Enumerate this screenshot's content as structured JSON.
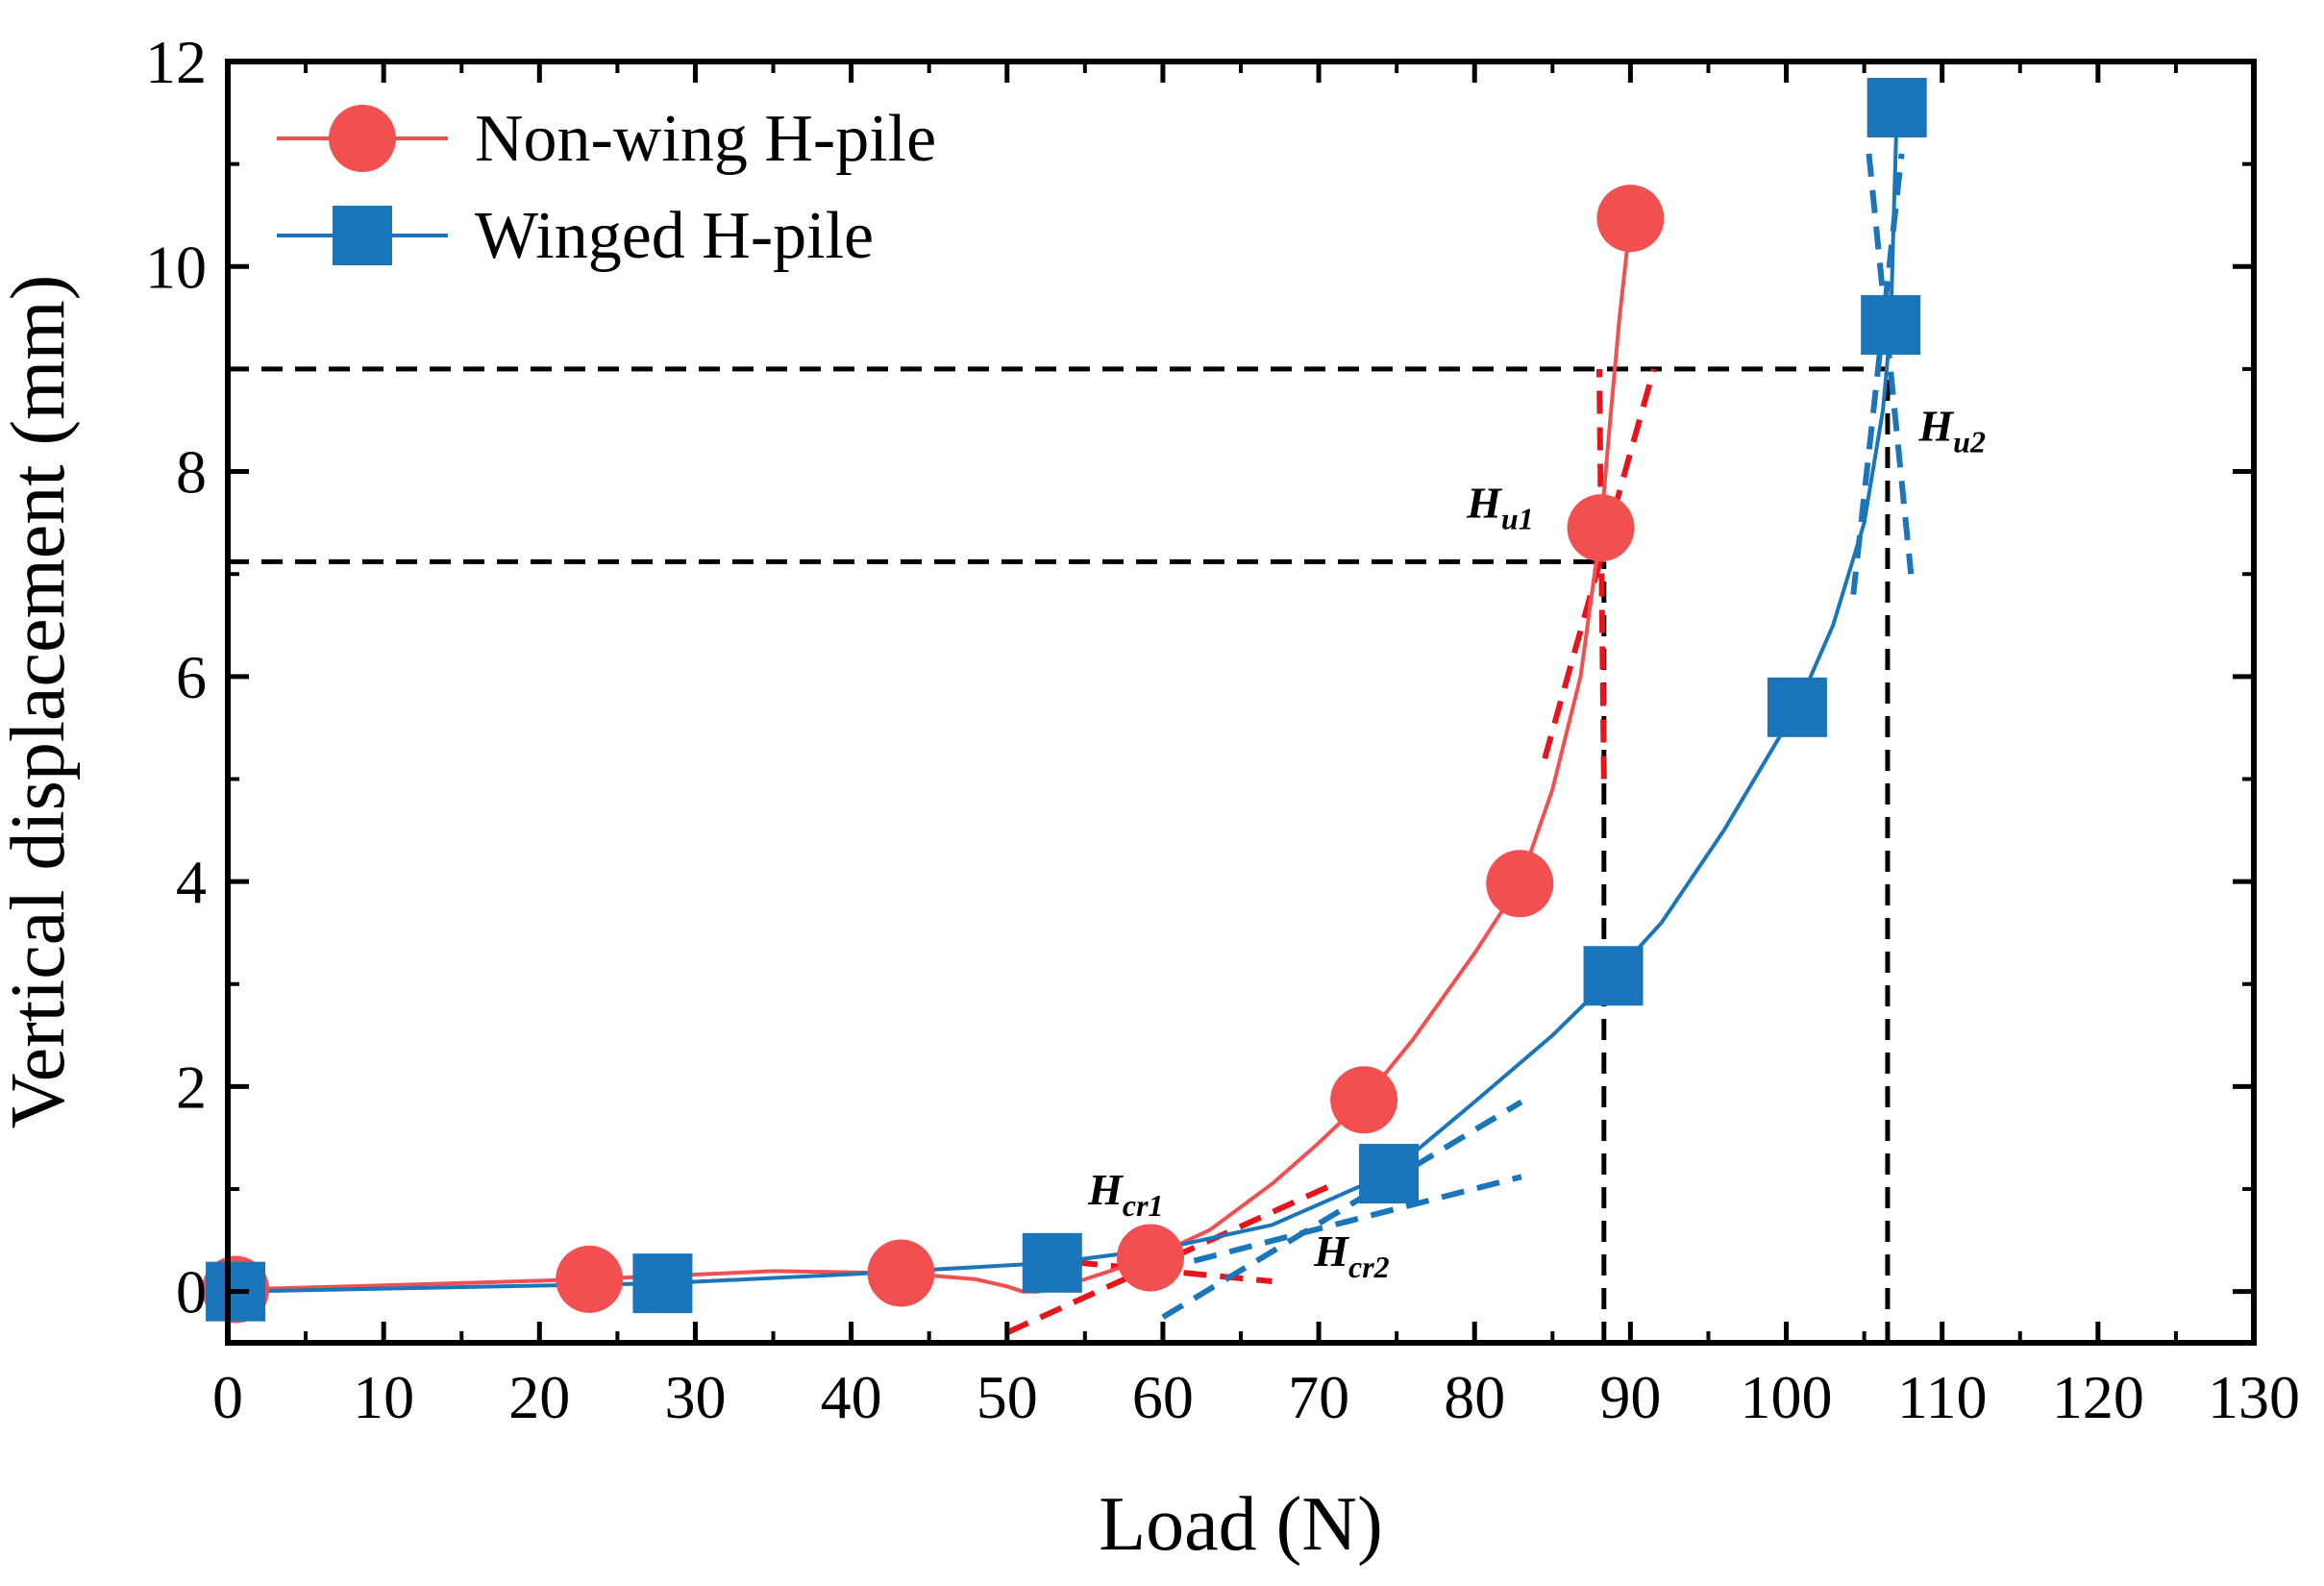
{
  "chart_data": {
    "type": "line",
    "title": "",
    "xlabel": "Load (N)",
    "ylabel": "Vertical displacement (mm)",
    "xlim": [
      0,
      130
    ],
    "ylim": [
      -0.5,
      12
    ],
    "xticks": [
      0,
      10,
      20,
      30,
      40,
      50,
      60,
      70,
      80,
      90,
      100,
      110,
      120,
      130
    ],
    "yticks": [
      0,
      2,
      4,
      6,
      8,
      10,
      12
    ],
    "legend_position": "top-left",
    "series": [
      {
        "name": "Non-wing H-pile",
        "color": "#f25050",
        "marker": "circle",
        "marker_points": [
          [
            0.5,
            0.02
          ],
          [
            23.2,
            0.12
          ],
          [
            43.2,
            0.18
          ],
          [
            59.2,
            0.33
          ],
          [
            72.9,
            1.87
          ],
          [
            82.9,
            3.98
          ],
          [
            88.1,
            7.45
          ],
          [
            90.0,
            10.47
          ]
        ],
        "line_points": [
          [
            0.5,
            0.02
          ],
          [
            10,
            0.06
          ],
          [
            23.2,
            0.12
          ],
          [
            35,
            0.2
          ],
          [
            43.2,
            0.18
          ],
          [
            48,
            0.12
          ],
          [
            50,
            0.05
          ],
          [
            51,
            0.0
          ],
          [
            52,
            0.0
          ],
          [
            55,
            0.12
          ],
          [
            59.2,
            0.33
          ],
          [
            63,
            0.6
          ],
          [
            67,
            1.05
          ],
          [
            70,
            1.45
          ],
          [
            72.9,
            1.87
          ],
          [
            76,
            2.45
          ],
          [
            80,
            3.3
          ],
          [
            82.9,
            3.98
          ],
          [
            85,
            4.9
          ],
          [
            86.8,
            6.0
          ],
          [
            88.1,
            7.45
          ],
          [
            88.7,
            8.5
          ],
          [
            89.3,
            9.5
          ],
          [
            90.0,
            10.47
          ]
        ]
      },
      {
        "name": "Winged H-pile",
        "color": "#1b75bb",
        "marker": "square",
        "marker_points": [
          [
            0.5,
            0.0
          ],
          [
            27.9,
            0.08
          ],
          [
            52.9,
            0.28
          ],
          [
            74.5,
            1.15
          ],
          [
            88.9,
            3.08
          ],
          [
            100.7,
            5.7
          ],
          [
            106.7,
            9.43
          ],
          [
            107.1,
            11.55
          ]
        ],
        "line_points": [
          [
            0.5,
            0.0
          ],
          [
            14,
            0.04
          ],
          [
            27.9,
            0.08
          ],
          [
            40,
            0.17
          ],
          [
            52.9,
            0.28
          ],
          [
            60,
            0.42
          ],
          [
            67,
            0.65
          ],
          [
            74.5,
            1.15
          ],
          [
            80,
            1.85
          ],
          [
            85,
            2.5
          ],
          [
            88.9,
            3.08
          ],
          [
            92,
            3.6
          ],
          [
            96,
            4.5
          ],
          [
            100.7,
            5.7
          ],
          [
            103,
            6.5
          ],
          [
            105,
            7.5
          ],
          [
            106.2,
            8.6
          ],
          [
            106.7,
            9.43
          ],
          [
            106.9,
            10.5
          ],
          [
            107.1,
            11.55
          ]
        ]
      }
    ],
    "reference_lines": [
      {
        "type": "h",
        "y": 7.12,
        "x_range": [
          0,
          88.3
        ]
      },
      {
        "type": "v",
        "x": 88.3,
        "y_range": [
          -0.5,
          7.12
        ]
      },
      {
        "type": "h",
        "y": 9.0,
        "x_range": [
          0,
          106.5
        ]
      },
      {
        "type": "v",
        "x": 106.5,
        "y_range": [
          -0.5,
          9.0
        ]
      }
    ],
    "tangent_lines": [
      {
        "series": "Non-wing H-pile",
        "from": [
          50,
          -0.4
        ],
        "to": [
          71,
          1.05
        ]
      },
      {
        "series": "Non-wing H-pile",
        "from": [
          52,
          0.32
        ],
        "to": [
          67,
          0.1
        ]
      },
      {
        "series": "Non-wing H-pile",
        "from": [
          84.5,
          5.2
        ],
        "to": [
          91.5,
          9.0
        ]
      },
      {
        "series": "Non-wing H-pile",
        "from": [
          88.3,
          5.0
        ],
        "to": [
          88.0,
          9.0
        ]
      },
      {
        "series": "Winged H-pile",
        "from": [
          60,
          -0.25
        ],
        "to": [
          83,
          1.85
        ]
      },
      {
        "series": "Winged H-pile",
        "from": [
          62,
          0.3
        ],
        "to": [
          83,
          1.12
        ]
      },
      {
        "series": "Winged H-pile",
        "from": [
          104.3,
          6.8
        ],
        "to": [
          107.4,
          11.1
        ]
      },
      {
        "series": "Winged H-pile",
        "from": [
          105.3,
          11.1
        ],
        "to": [
          108.0,
          7.0
        ]
      }
    ],
    "annotations": [
      {
        "main": "H",
        "sub": "u1",
        "x": 79.5,
        "y": 7.55
      },
      {
        "main": "H",
        "sub": "u2",
        "x": 108.5,
        "y": 8.3
      },
      {
        "main": "H",
        "sub": "cr1",
        "x": 55.2,
        "y": 0.85
      },
      {
        "main": "H",
        "sub": "cr2",
        "x": 69.7,
        "y": 0.25
      }
    ]
  }
}
